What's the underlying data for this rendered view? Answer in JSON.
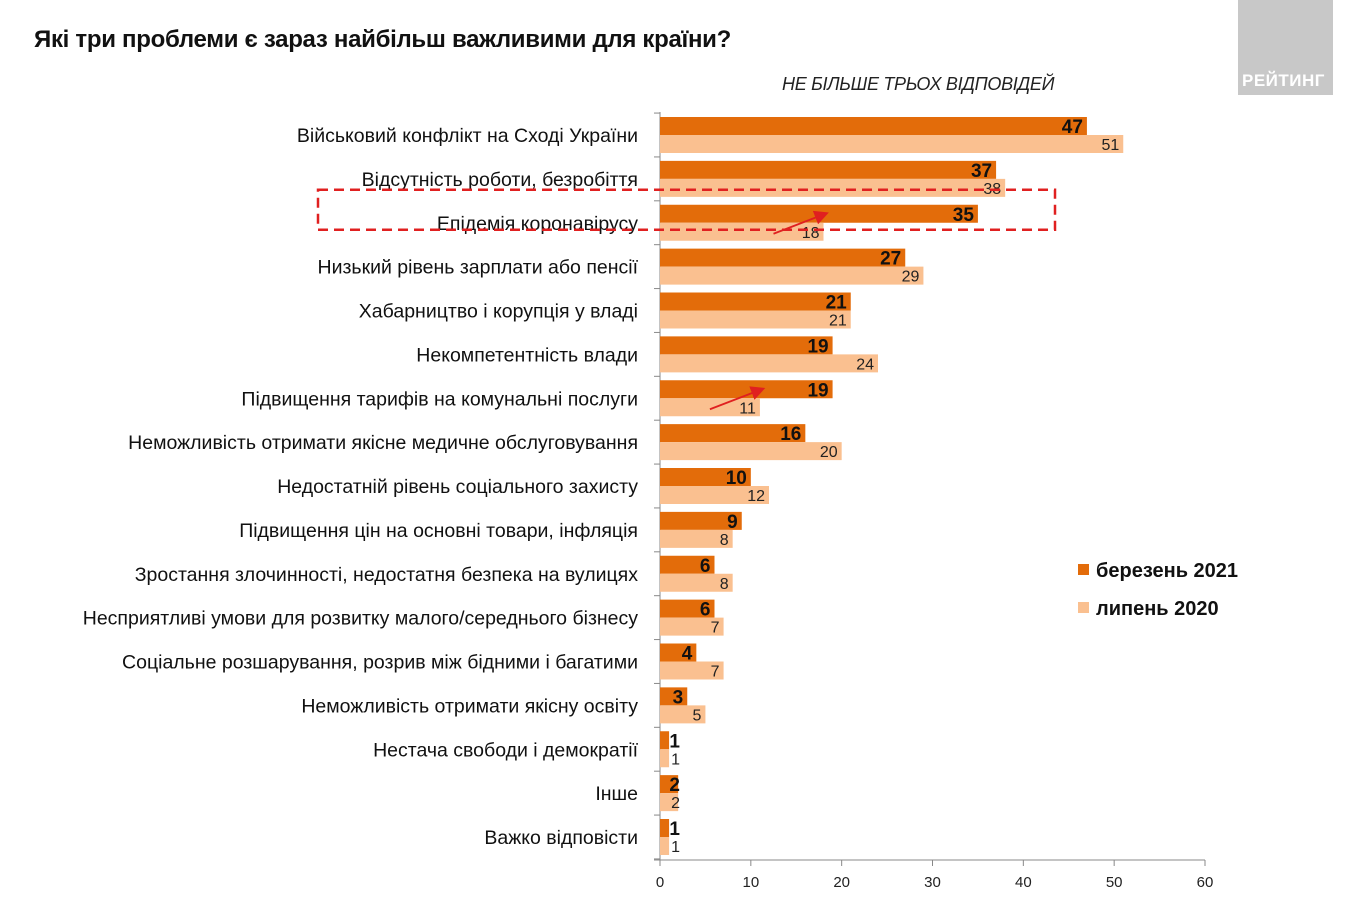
{
  "chart_data": {
    "type": "bar",
    "orientation": "horizontal",
    "title": "Які три проблеми є зараз найбільш важливими для країни?",
    "subtitle": "НЕ БІЛЬШЕ ТРЬОХ ВІДПОВІДЕЙ",
    "categories": [
      "Військовий конфлікт на Сході України",
      "Відсутність роботи, безробіття",
      "Епідемія коронавірусу",
      "Низький рівень зарплати або пенсії",
      "Хабарництво і корупція у владі",
      "Некомпетентність влади",
      "Підвищення тарифів на комунальні послуги",
      "Неможливість отримати якісне медичне обслуговування",
      "Недостатній рівень соціального захисту",
      "Підвищення цін на основні товари, інфляція",
      "Зростання злочинності, недостатня безпека на вулицях",
      "Несприятливі умови для розвитку малого/середнього бізнесу",
      "Соціальне розшарування, розрив між бідними і багатими",
      "Неможливість отримати якісну освіту",
      "Нестача свободи і демократії",
      "Інше",
      "Важко відповісти"
    ],
    "series": [
      {
        "name": "березень 2021",
        "color": "#e36c0a",
        "values": [
          47,
          37,
          35,
          27,
          21,
          19,
          19,
          16,
          10,
          9,
          6,
          6,
          4,
          3,
          1,
          2,
          1
        ]
      },
      {
        "name": "липень 2020",
        "color": "#fac090",
        "values": [
          51,
          38,
          18,
          29,
          21,
          24,
          11,
          20,
          12,
          8,
          8,
          7,
          7,
          5,
          1,
          2,
          1
        ]
      }
    ],
    "xlim": [
      0,
      60
    ],
    "xticks": [
      0,
      10,
      20,
      30,
      40,
      50,
      60
    ],
    "grid": false,
    "legend_position": "right",
    "highlight": {
      "category": "Епідемія коронавірусу",
      "style": "red dashed box",
      "color": "#e02020"
    },
    "arrows_on": [
      "Епідемія коронавірусу",
      "Підвищення тарифів на комунальні послуги"
    ]
  },
  "logo": {
    "text": "РЕЙТИНГ"
  }
}
